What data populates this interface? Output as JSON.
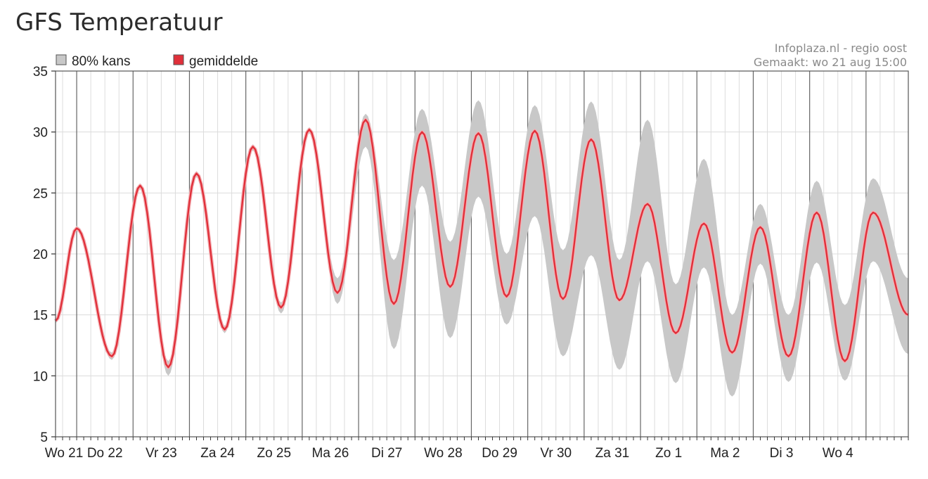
{
  "page": {
    "title": "GFS Temperatuur"
  },
  "chart_data": {
    "type": "line",
    "title": "",
    "xlabel": "",
    "ylabel": "",
    "ylim": [
      5,
      35
    ],
    "yticks": [
      5,
      10,
      15,
      20,
      25,
      30,
      35
    ],
    "x_unit": "hours since start (3h steps)",
    "xlim": [
      0,
      363
    ],
    "day_labels": [
      "Wo 21",
      "Do 22",
      "Vr 23",
      "Za 24",
      "Zo 25",
      "Ma 26",
      "Di 27",
      "Wo 28",
      "Do 29",
      "Vr 30",
      "Za 31",
      "Zo 1",
      "Ma 2",
      "Di 3",
      "Wo 4"
    ],
    "grid": true,
    "legend": {
      "position": "top-left",
      "entries": [
        {
          "name": "80% kans",
          "color": "#c8c8c8"
        },
        {
          "name": "gemiddelde",
          "color": "#e0303a"
        }
      ]
    },
    "source_lines": [
      "Infoplaza.nl - regio oost",
      "Gemaakt: wo 21 aug 15:00"
    ],
    "series": [
      {
        "name": "gemiddelde",
        "color": "#e0303a",
        "extrema": [
          [
            0,
            14.5
          ],
          [
            9,
            22.1
          ],
          [
            24,
            11.6
          ],
          [
            36,
            25.6
          ],
          [
            48,
            10.7
          ],
          [
            60,
            26.6
          ],
          [
            72,
            13.8
          ],
          [
            84,
            28.8
          ],
          [
            96,
            15.6
          ],
          [
            108,
            30.2
          ],
          [
            120,
            16.8
          ],
          [
            132,
            31.0
          ],
          [
            144,
            15.9
          ],
          [
            156,
            30.0
          ],
          [
            168,
            17.3
          ],
          [
            180,
            29.9
          ],
          [
            192,
            16.5
          ],
          [
            204,
            30.1
          ],
          [
            216,
            16.3
          ],
          [
            228,
            29.4
          ],
          [
            240,
            16.2
          ],
          [
            252,
            24.1
          ],
          [
            264,
            13.5
          ],
          [
            276,
            22.5
          ],
          [
            288,
            11.9
          ],
          [
            300,
            22.2
          ],
          [
            312,
            11.6
          ],
          [
            324,
            23.4
          ],
          [
            336,
            11.2
          ],
          [
            348,
            23.4
          ],
          [
            363,
            15.0
          ]
        ]
      },
      {
        "name": "80% kans upper",
        "color": "#c8c8c8",
        "extrema": [
          [
            0,
            14.7
          ],
          [
            9,
            22.3
          ],
          [
            24,
            11.9
          ],
          [
            36,
            25.8
          ],
          [
            48,
            11.2
          ],
          [
            60,
            26.8
          ],
          [
            72,
            14.1
          ],
          [
            84,
            29.0
          ],
          [
            96,
            16.0
          ],
          [
            108,
            30.4
          ],
          [
            120,
            18.0
          ],
          [
            132,
            31.5
          ],
          [
            144,
            19.5
          ],
          [
            156,
            31.9
          ],
          [
            168,
            21.0
          ],
          [
            180,
            32.6
          ],
          [
            192,
            20.0
          ],
          [
            204,
            32.2
          ],
          [
            216,
            20.3
          ],
          [
            228,
            32.5
          ],
          [
            240,
            19.5
          ],
          [
            252,
            31.0
          ],
          [
            264,
            17.5
          ],
          [
            276,
            27.8
          ],
          [
            288,
            15.0
          ],
          [
            300,
            24.1
          ],
          [
            312,
            15.0
          ],
          [
            324,
            26.0
          ],
          [
            336,
            15.8
          ],
          [
            348,
            26.2
          ],
          [
            363,
            18.0
          ]
        ]
      },
      {
        "name": "80% kans lower",
        "color": "#c8c8c8",
        "extrema": [
          [
            0,
            14.3
          ],
          [
            9,
            21.9
          ],
          [
            24,
            11.3
          ],
          [
            36,
            25.3
          ],
          [
            48,
            10.0
          ],
          [
            60,
            26.3
          ],
          [
            72,
            13.5
          ],
          [
            84,
            28.5
          ],
          [
            96,
            15.1
          ],
          [
            108,
            29.9
          ],
          [
            120,
            15.9
          ],
          [
            132,
            28.8
          ],
          [
            144,
            12.2
          ],
          [
            156,
            25.6
          ],
          [
            168,
            13.1
          ],
          [
            180,
            24.7
          ],
          [
            192,
            14.2
          ],
          [
            204,
            23.1
          ],
          [
            216,
            11.6
          ],
          [
            228,
            19.9
          ],
          [
            240,
            10.5
          ],
          [
            252,
            19.4
          ],
          [
            264,
            9.4
          ],
          [
            276,
            18.9
          ],
          [
            288,
            8.3
          ],
          [
            300,
            19.2
          ],
          [
            312,
            9.5
          ],
          [
            324,
            19.3
          ],
          [
            336,
            9.6
          ],
          [
            348,
            19.4
          ],
          [
            363,
            11.8
          ]
        ]
      }
    ]
  }
}
